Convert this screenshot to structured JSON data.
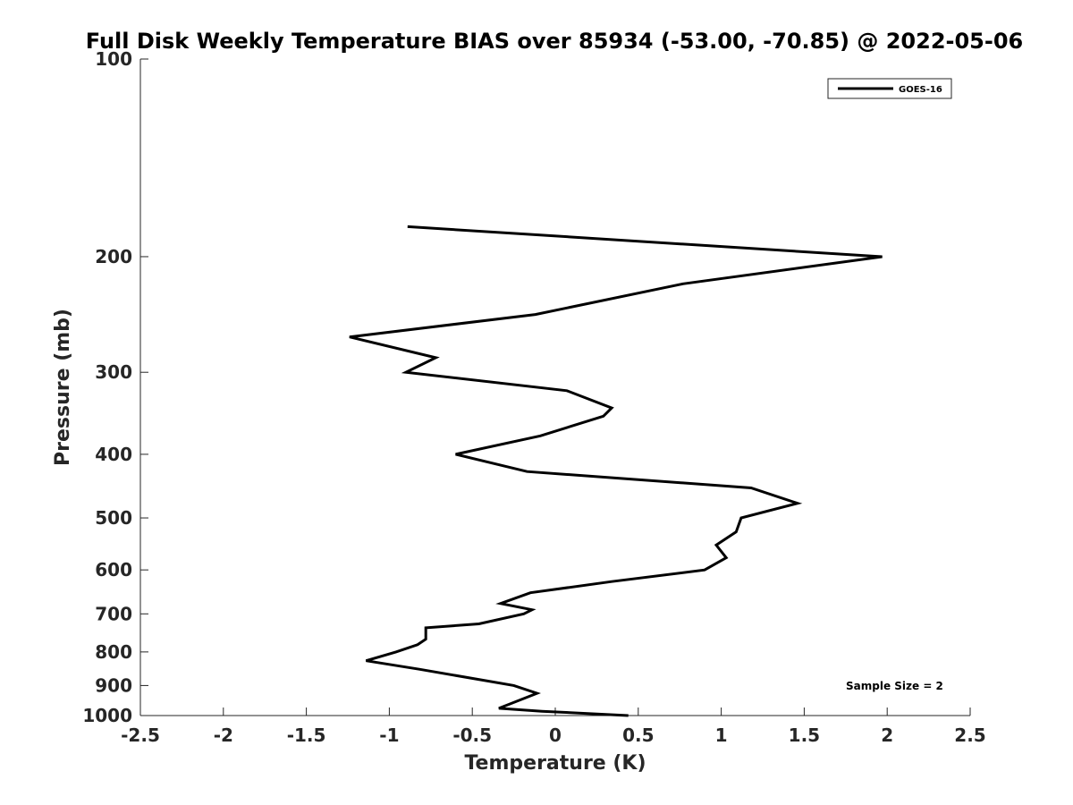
{
  "chart_data": {
    "type": "line",
    "title": "Full Disk Weekly Temperature BIAS over 85934 (-53.00, -70.85) @ 2022-05-06",
    "xlabel": "Temperature (K)",
    "ylabel": "Pressure (mb)",
    "xlim": [
      -2.5,
      2.5
    ],
    "ylim": [
      100,
      1000
    ],
    "y_scale": "log",
    "y_reversed": true,
    "xticks": [
      -2.5,
      -2,
      -1.5,
      -1,
      -0.5,
      0,
      0.5,
      1,
      1.5,
      2,
      2.5
    ],
    "xtick_labels": [
      "-2.5",
      "-2",
      "-1.5",
      "-1",
      "-0.5",
      "0",
      "0.5",
      "1",
      "1.5",
      "2",
      "2.5"
    ],
    "yticks": [
      100,
      200,
      300,
      400,
      500,
      600,
      700,
      800,
      900,
      1000
    ],
    "ytick_labels": [
      "100",
      "200",
      "300",
      "400",
      "500",
      "600",
      "700",
      "800",
      "900",
      "1000"
    ],
    "grid": false,
    "legend_position": "top-right",
    "annotation": "Sample Size = 2",
    "series": [
      {
        "name": "GOES-16",
        "color": "#000000",
        "points": [
          {
            "pressure": 1000,
            "temp": 0.44
          },
          {
            "pressure": 985,
            "temp": -0.08
          },
          {
            "pressure": 975,
            "temp": -0.34
          },
          {
            "pressure": 925,
            "temp": -0.11
          },
          {
            "pressure": 900,
            "temp": -0.25
          },
          {
            "pressure": 850,
            "temp": -0.82
          },
          {
            "pressure": 825,
            "temp": -1.14
          },
          {
            "pressure": 800,
            "temp": -0.96
          },
          {
            "pressure": 780,
            "temp": -0.83
          },
          {
            "pressure": 765,
            "temp": -0.78
          },
          {
            "pressure": 750,
            "temp": -0.78
          },
          {
            "pressure": 735,
            "temp": -0.78
          },
          {
            "pressure": 725,
            "temp": -0.46
          },
          {
            "pressure": 700,
            "temp": -0.19
          },
          {
            "pressure": 690,
            "temp": -0.14
          },
          {
            "pressure": 675,
            "temp": -0.33
          },
          {
            "pressure": 650,
            "temp": -0.15
          },
          {
            "pressure": 625,
            "temp": 0.34
          },
          {
            "pressure": 600,
            "temp": 0.9
          },
          {
            "pressure": 575,
            "temp": 1.03
          },
          {
            "pressure": 550,
            "temp": 0.97
          },
          {
            "pressure": 525,
            "temp": 1.09
          },
          {
            "pressure": 500,
            "temp": 1.12
          },
          {
            "pressure": 475,
            "temp": 1.46
          },
          {
            "pressure": 450,
            "temp": 1.18
          },
          {
            "pressure": 425,
            "temp": -0.17
          },
          {
            "pressure": 400,
            "temp": -0.6
          },
          {
            "pressure": 375,
            "temp": -0.09
          },
          {
            "pressure": 350,
            "temp": 0.29
          },
          {
            "pressure": 340,
            "temp": 0.34
          },
          {
            "pressure": 320,
            "temp": 0.07
          },
          {
            "pressure": 300,
            "temp": -0.9
          },
          {
            "pressure": 285,
            "temp": -0.72
          },
          {
            "pressure": 265,
            "temp": -1.24
          },
          {
            "pressure": 245,
            "temp": -0.12
          },
          {
            "pressure": 220,
            "temp": 0.77
          },
          {
            "pressure": 200,
            "temp": 1.97
          },
          {
            "pressure": 180,
            "temp": -0.89
          }
        ]
      }
    ]
  }
}
